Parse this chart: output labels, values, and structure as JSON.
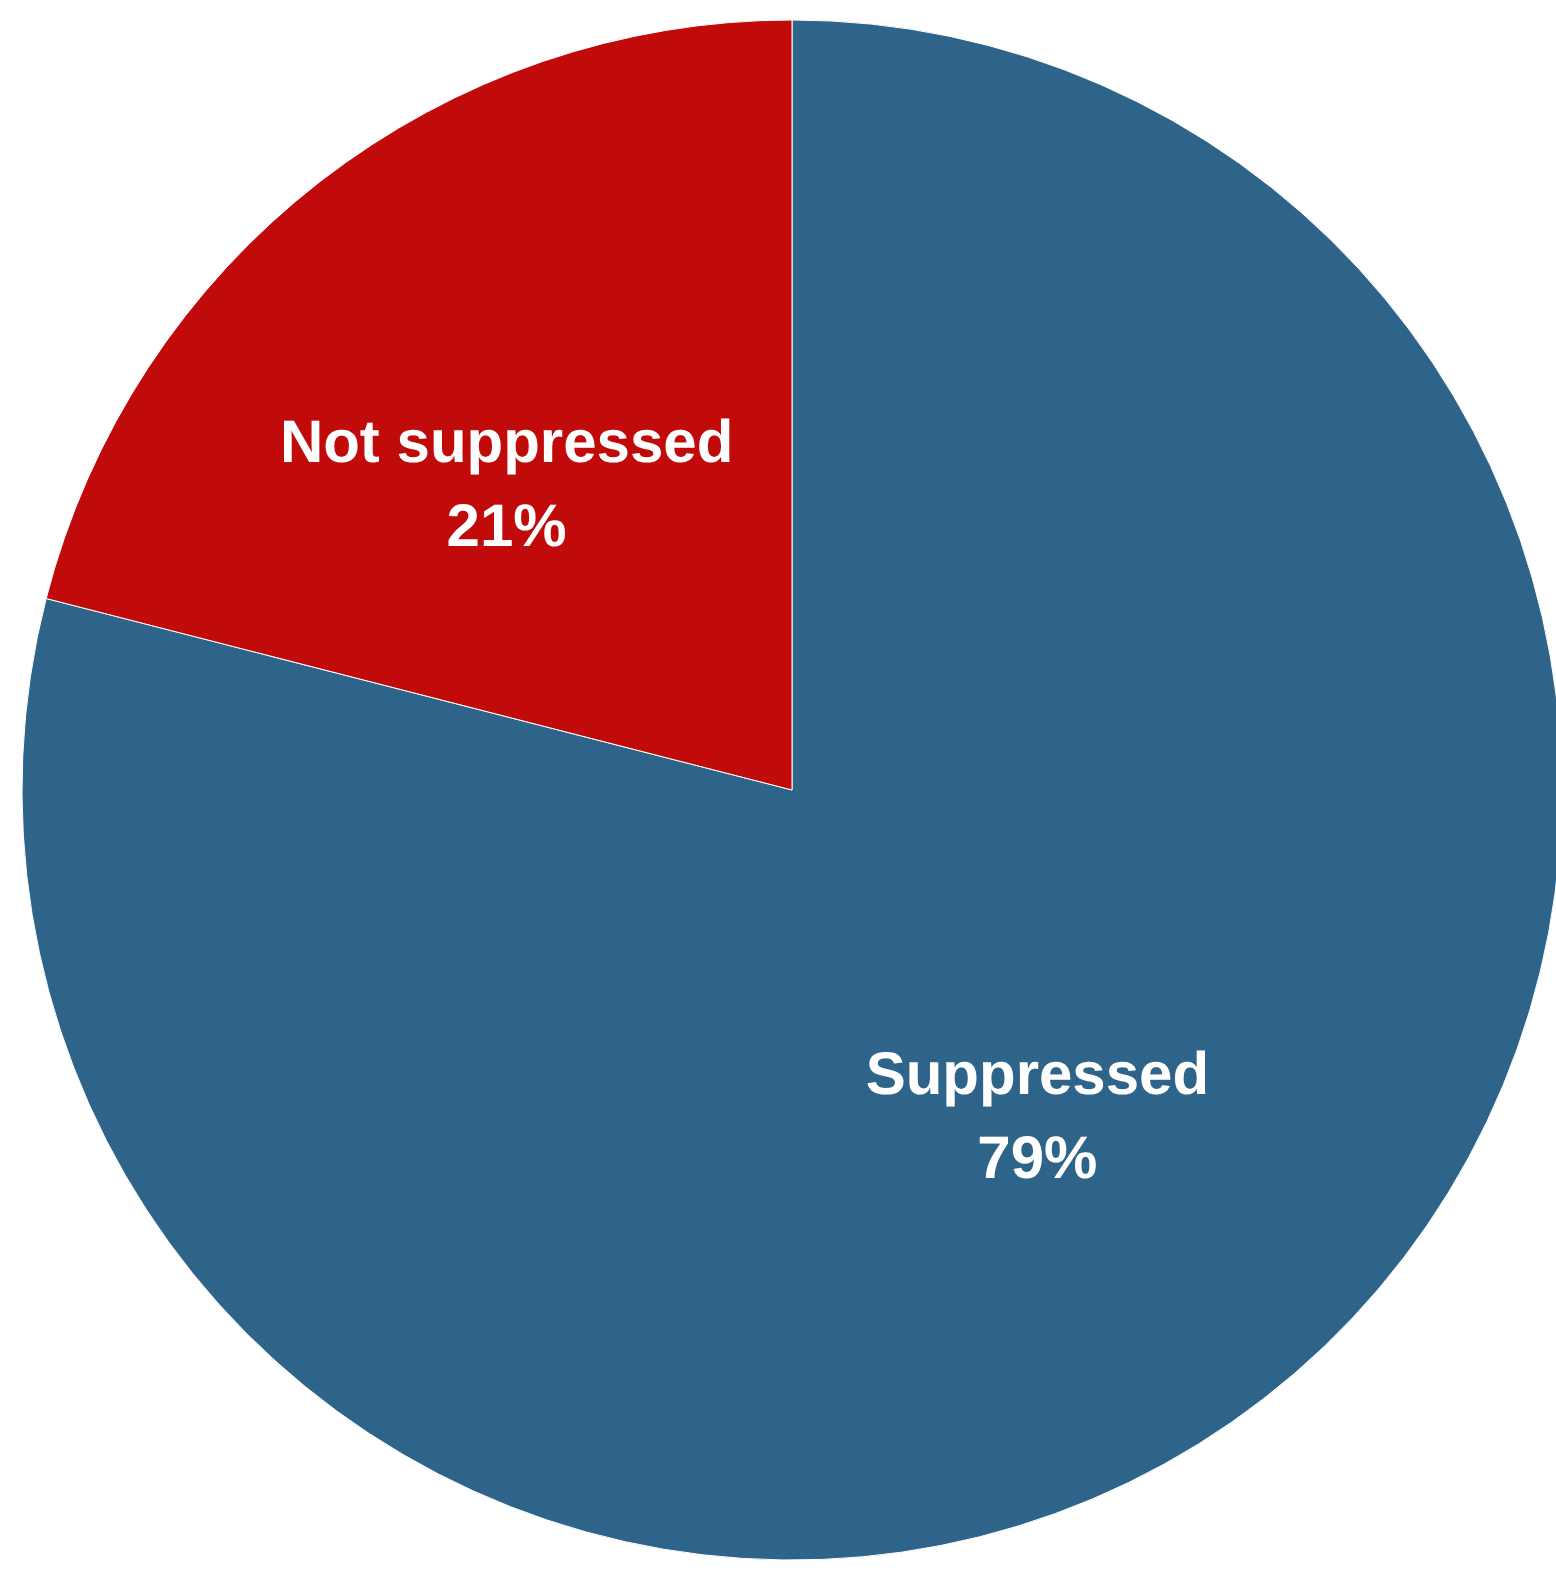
{
  "chart_data": {
    "type": "pie",
    "categories": [
      "Suppressed",
      "Not suppressed"
    ],
    "values": [
      79,
      21
    ],
    "colors": [
      "#2e6489",
      "#c10b0b"
    ],
    "value_labels": [
      "79%",
      "21%"
    ]
  }
}
